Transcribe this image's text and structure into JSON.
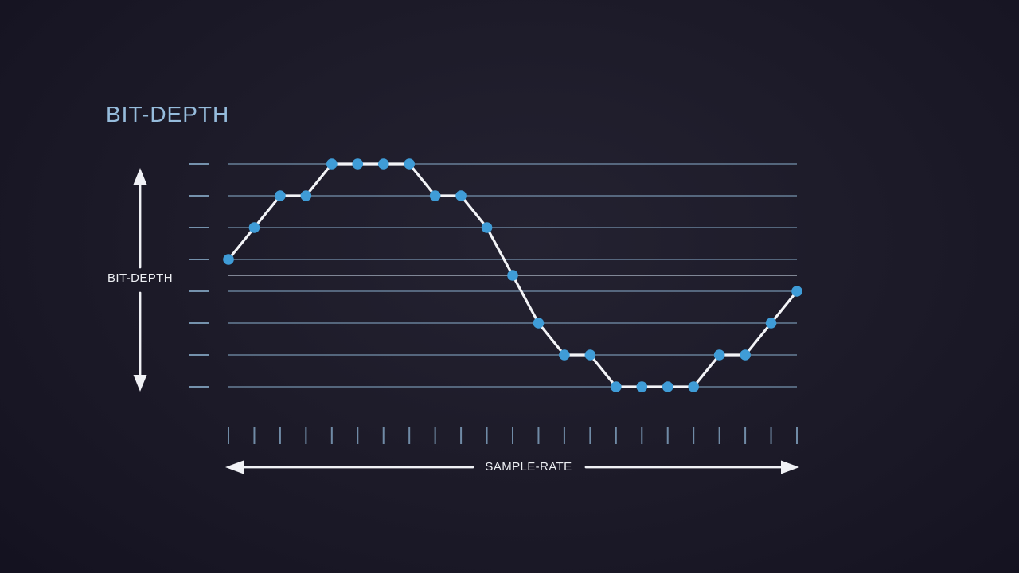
{
  "page": {
    "title": "BIT-DEPTH"
  },
  "axes": {
    "y": {
      "label": "BIT-DEPTH"
    },
    "x": {
      "label": "SAMPLE-RATE"
    }
  },
  "colors": {
    "background": "#1d1b29",
    "title_text": "#96bcdc",
    "grid_line": "#7f9fbc",
    "center_line": "#c3cedd",
    "sample_dot": "#3f9cd7",
    "waveform": "#f3f4f7",
    "arrow": "#f0f1f5",
    "axis_text": "#eef0f4"
  },
  "chart_data": {
    "type": "line",
    "title": "BIT-DEPTH",
    "xlabel": "SAMPLE-RATE",
    "ylabel": "BIT-DEPTH",
    "description": "Sine wave sampled at 23 evenly spaced points and quantized to 8 bit-depth levels; dots mark samples, horizontal lines mark quantization levels, bottom ticks mark sample times",
    "quantization_levels": 8,
    "grid_levels": [
      3.5,
      2.5,
      1.5,
      0.5,
      -0.5,
      -1.5,
      -2.5,
      -3.5
    ],
    "center_level": 0,
    "sample_count": 23,
    "x": [
      0,
      1,
      2,
      3,
      4,
      5,
      6,
      7,
      8,
      9,
      10,
      11,
      12,
      13,
      14,
      15,
      16,
      17,
      18,
      19,
      20,
      21,
      22
    ],
    "values": [
      0.5,
      1.5,
      2.5,
      2.5,
      3.5,
      3.5,
      3.5,
      3.5,
      2.5,
      2.5,
      1.5,
      0,
      -1.5,
      -2.5,
      -2.5,
      -3.5,
      -3.5,
      -3.5,
      -3.5,
      -2.5,
      -2.5,
      -1.5,
      -0.5
    ],
    "ylim": [
      -4,
      4
    ],
    "grid": true,
    "legend_position": "none"
  }
}
